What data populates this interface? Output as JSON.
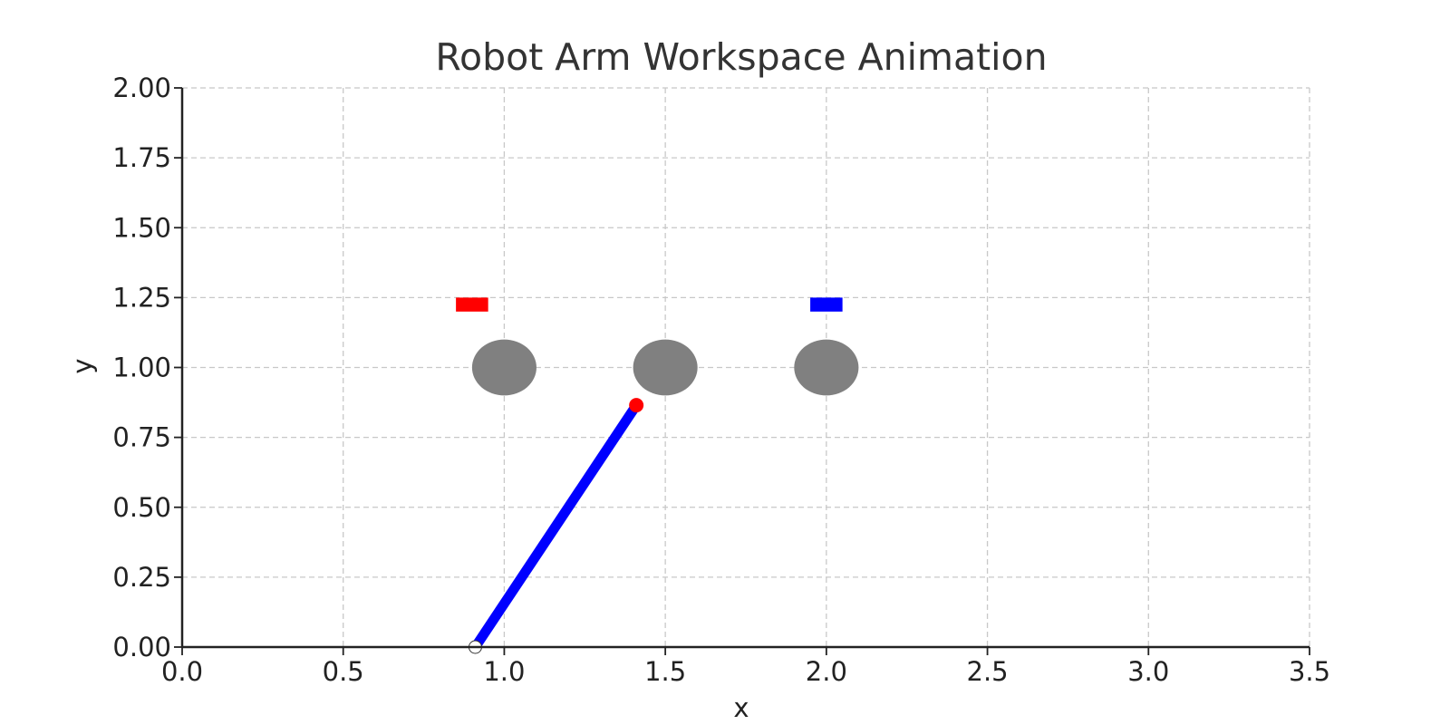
{
  "chart_data": {
    "type": "scatter",
    "title": "Robot Arm Workspace Animation",
    "xlabel": "x",
    "ylabel": "y",
    "xlim": [
      0.0,
      3.5
    ],
    "ylim": [
      0.0,
      2.0
    ],
    "xticks": [
      0.0,
      0.5,
      1.0,
      1.5,
      2.0,
      2.5,
      3.0,
      3.5
    ],
    "xtick_labels": [
      "0.0",
      "0.5",
      "1.0",
      "1.5",
      "2.0",
      "2.5",
      "3.0",
      "3.5"
    ],
    "yticks": [
      0.0,
      0.25,
      0.5,
      0.75,
      1.0,
      1.25,
      1.5,
      1.75,
      2.0
    ],
    "ytick_labels": [
      "0.00",
      "0.25",
      "0.50",
      "0.75",
      "1.00",
      "1.25",
      "1.50",
      "1.75",
      "2.00"
    ],
    "grid": true,
    "obstacles": [
      {
        "x": 1.0,
        "y": 1.0,
        "radius": 0.1,
        "color": "#808080"
      },
      {
        "x": 1.5,
        "y": 1.0,
        "radius": 0.1,
        "color": "#808080"
      },
      {
        "x": 2.0,
        "y": 1.0,
        "radius": 0.1,
        "color": "#808080"
      }
    ],
    "targets": [
      {
        "x": 0.9,
        "y": 1.225,
        "width": 0.1,
        "height": 0.05,
        "color": "#ff0000"
      },
      {
        "x": 2.0,
        "y": 1.225,
        "width": 0.1,
        "height": 0.05,
        "color": "#0000ff"
      }
    ],
    "arm": {
      "base": {
        "x": 0.91,
        "y": 0.0
      },
      "end_effector": {
        "x": 1.41,
        "y": 0.865
      },
      "link_color": "#0000ff",
      "end_effector_color": "#ff0000"
    }
  }
}
